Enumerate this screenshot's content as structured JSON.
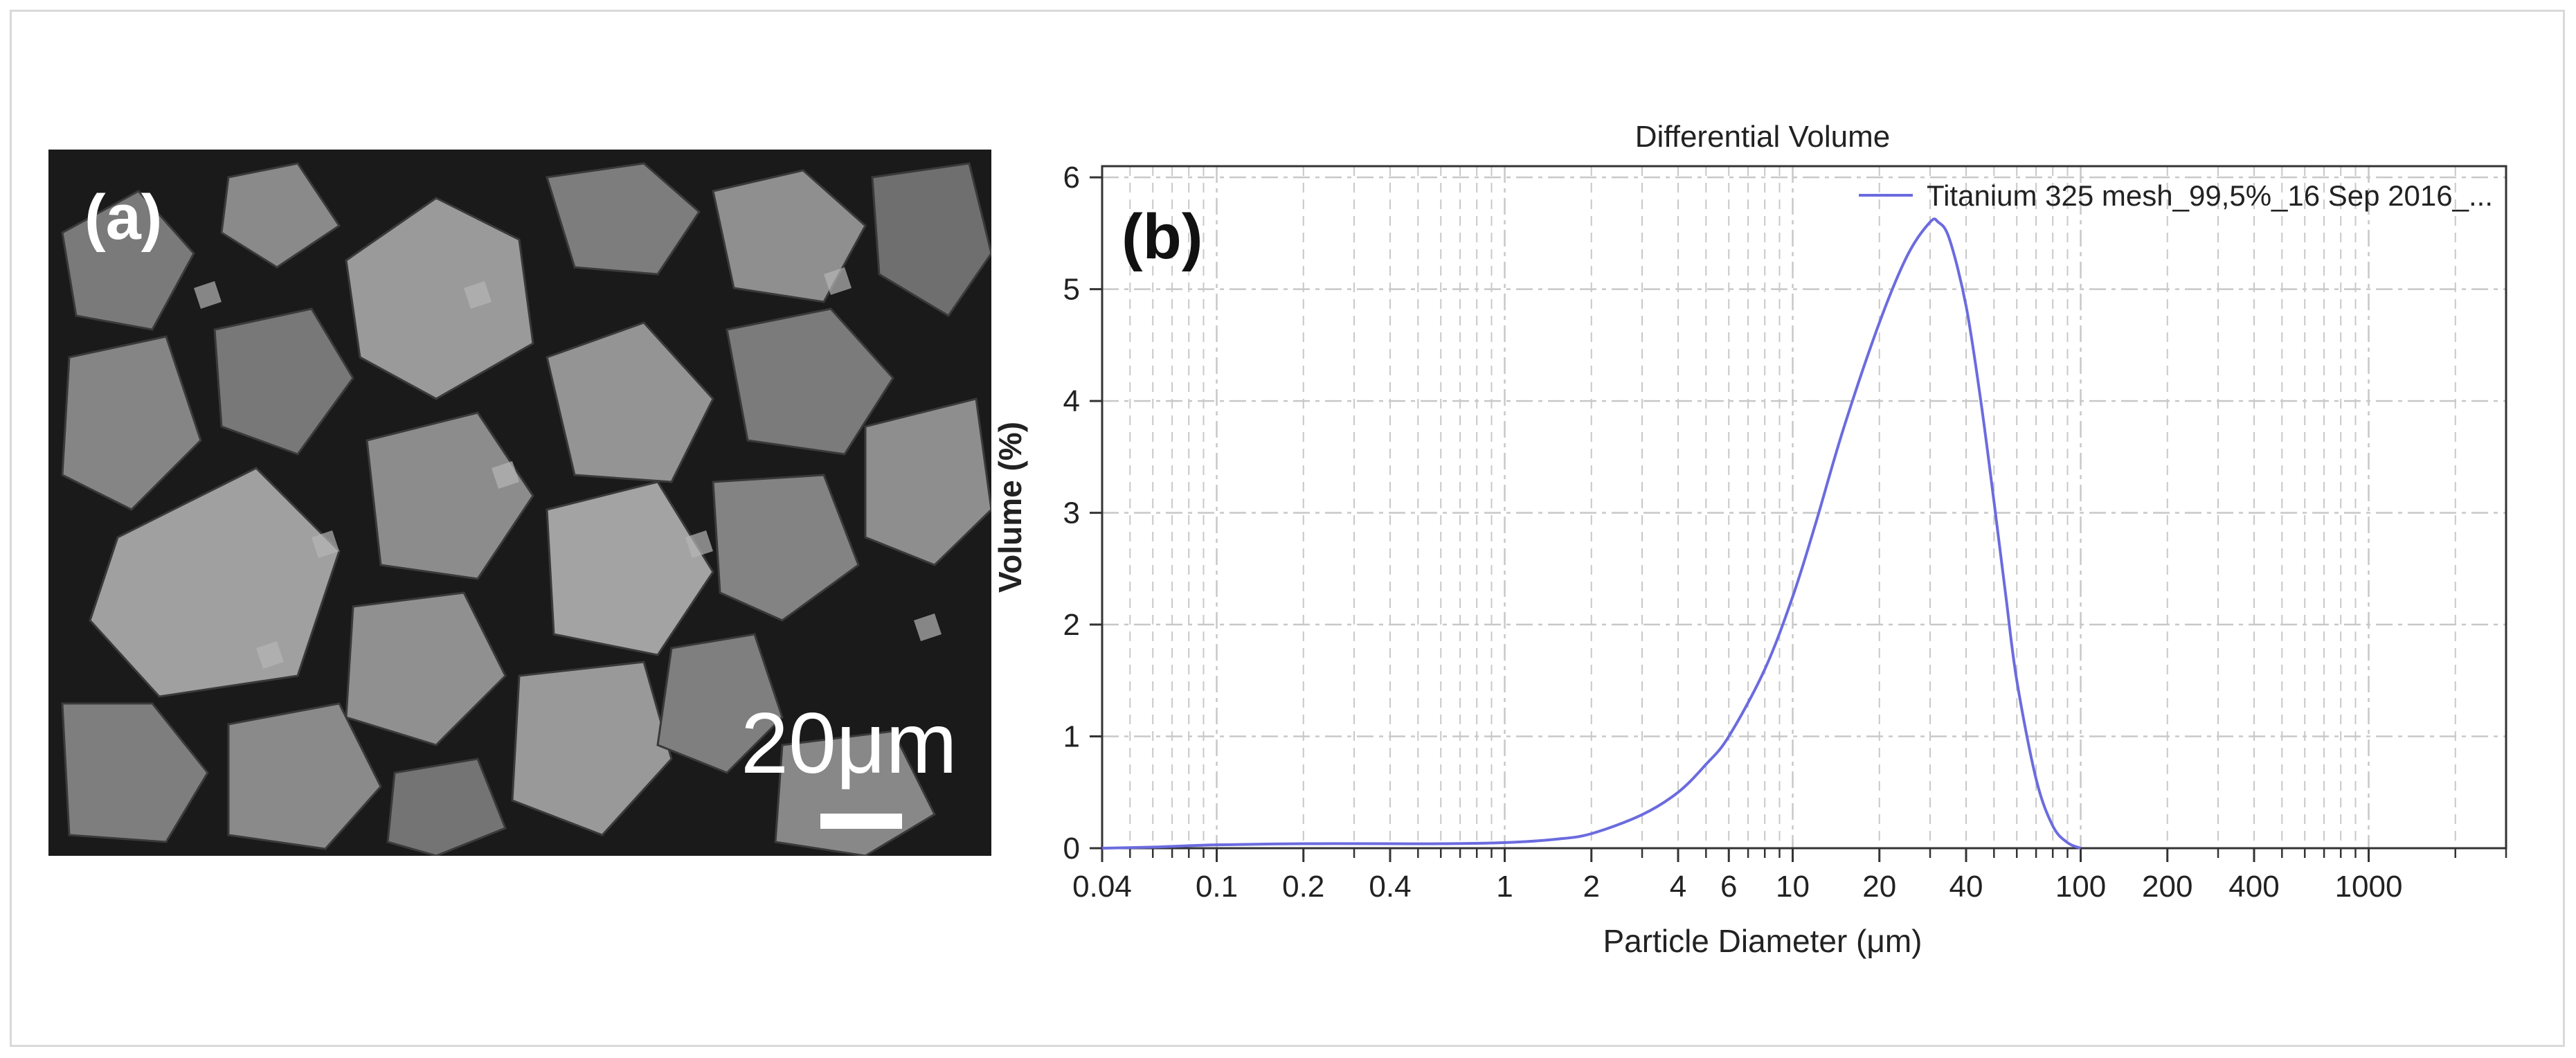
{
  "panels": {
    "a": {
      "label": "(a)",
      "scale_text": "20μm"
    },
    "b": {
      "label": "(b)"
    }
  },
  "colors": {
    "series": "#6b6bdf",
    "grid": "#c8c8c8",
    "axis": "#333333",
    "background": "#ffffff"
  },
  "chart_data": {
    "type": "line",
    "title": "Differential Volume",
    "xlabel": "Particle Diameter (μm)",
    "ylabel": "Volume (%)",
    "x_scale": "log",
    "xlim": [
      0.04,
      3000
    ],
    "ylim": [
      0,
      6.1
    ],
    "x_ticks": [
      "0.04",
      "0.1",
      "0.2",
      "0.4",
      "1",
      "2",
      "4",
      "6",
      "10",
      "20",
      "40",
      "100",
      "200",
      "400",
      "1000"
    ],
    "y_ticks": [
      "0",
      "1",
      "2",
      "3",
      "4",
      "5",
      "6"
    ],
    "grid": true,
    "legend_position": "top-right",
    "series": [
      {
        "name": "Titanium 325 mesh_99,5%_16 Sep 2016_...",
        "x": [
          0.04,
          0.06,
          0.1,
          0.2,
          0.4,
          0.6,
          1,
          1.5,
          2,
          3,
          4,
          5,
          6,
          8,
          10,
          12,
          15,
          20,
          25,
          30,
          32,
          35,
          40,
          45,
          50,
          55,
          60,
          70,
          80,
          90,
          100
        ],
        "y": [
          0,
          0.01,
          0.03,
          0.04,
          0.04,
          0.04,
          0.05,
          0.08,
          0.13,
          0.3,
          0.5,
          0.75,
          1.0,
          1.6,
          2.25,
          2.9,
          3.75,
          4.7,
          5.3,
          5.6,
          5.6,
          5.45,
          4.85,
          4.0,
          3.1,
          2.25,
          1.5,
          0.62,
          0.2,
          0.05,
          0
        ]
      }
    ]
  }
}
